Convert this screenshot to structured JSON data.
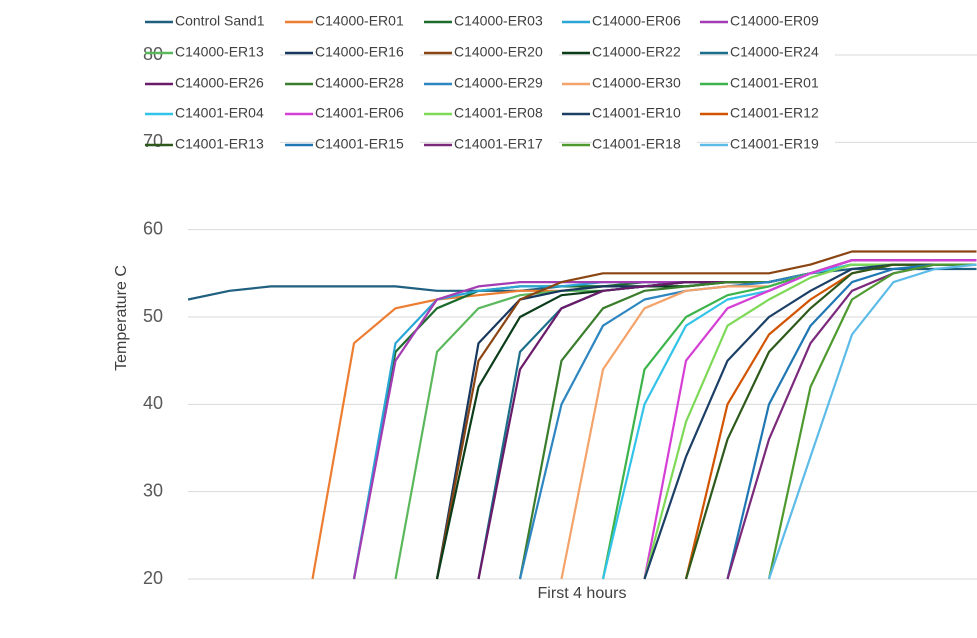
{
  "chart_data": {
    "type": "line",
    "y_label": "Temperature C",
    "x_label": "First 4 hours",
    "categories": [
      null,
      null,
      null,
      null,
      null,
      null,
      null,
      null,
      null,
      null,
      null,
      null,
      null,
      null,
      null,
      null,
      null,
      null,
      null,
      null
    ],
    "ylim": [
      20,
      80
    ],
    "yticks": [
      20,
      30,
      40,
      50,
      60,
      70,
      80
    ],
    "grid": true,
    "series": [
      {
        "name": "Control Sand1",
        "color": "#1f5f7f",
        "values": [
          52,
          53,
          53.5,
          53.5,
          53.5,
          53.5,
          53,
          53,
          53,
          53.5,
          53.5,
          53.5,
          54,
          54,
          54,
          55,
          55.5,
          55.5,
          55.5,
          55.5
        ]
      },
      {
        "name": "C14000-ER01",
        "color": "#ed7d31",
        "values": [
          null,
          null,
          null,
          20,
          47,
          51,
          52,
          52.5,
          53,
          53,
          53.5,
          53.5,
          54,
          54,
          54,
          55,
          56,
          56,
          56,
          56
        ]
      },
      {
        "name": "C14000-ER03",
        "color": "#1e6b2e",
        "values": [
          null,
          null,
          null,
          null,
          20,
          46,
          51,
          53,
          53.5,
          53.5,
          53.5,
          54,
          54,
          54,
          54,
          55,
          56,
          56,
          56,
          56
        ]
      },
      {
        "name": "C14000-ER06",
        "color": "#2aa6d6",
        "values": [
          null,
          null,
          null,
          null,
          20,
          47,
          52,
          53,
          53.5,
          53.5,
          54,
          54,
          54,
          54,
          54,
          55,
          56.5,
          56.5,
          56.5,
          56.5
        ]
      },
      {
        "name": "C14000-ER09",
        "color": "#a33db3",
        "values": [
          null,
          null,
          null,
          null,
          20,
          45,
          52,
          53.5,
          54,
          54,
          54,
          54,
          54,
          54,
          54,
          55,
          56.5,
          56.5,
          56.5,
          56.5
        ]
      },
      {
        "name": "C14000-ER13",
        "color": "#5cb85c",
        "values": [
          null,
          null,
          null,
          null,
          null,
          20,
          46,
          51,
          52.5,
          53,
          53,
          53.5,
          53.5,
          54,
          54,
          55,
          56,
          56,
          56,
          56
        ]
      },
      {
        "name": "C14000-ER16",
        "color": "#17375e",
        "values": [
          null,
          null,
          null,
          null,
          null,
          null,
          20,
          47,
          52,
          53,
          53.5,
          53.5,
          54,
          54,
          54,
          55,
          56,
          56,
          56,
          56
        ]
      },
      {
        "name": "C14000-ER20",
        "color": "#8b4513",
        "values": [
          null,
          null,
          null,
          null,
          null,
          null,
          20,
          45,
          52,
          54,
          55,
          55,
          55,
          55,
          55,
          56,
          57.5,
          57.5,
          57.5,
          57.5
        ]
      },
      {
        "name": "C14000-ER22",
        "color": "#0b3d1a",
        "values": [
          null,
          null,
          null,
          null,
          null,
          null,
          20,
          42,
          50,
          52.5,
          53,
          53.5,
          53.5,
          54,
          54,
          55,
          56,
          56,
          56,
          56
        ]
      },
      {
        "name": "C14000-ER24",
        "color": "#1b6f8a",
        "values": [
          null,
          null,
          null,
          null,
          null,
          null,
          null,
          20,
          46,
          51,
          53,
          53.5,
          54,
          54,
          54,
          55,
          56,
          56,
          56,
          56
        ]
      },
      {
        "name": "C14000-ER26",
        "color": "#6a1b6a",
        "values": [
          null,
          null,
          null,
          null,
          null,
          null,
          null,
          20,
          44,
          51,
          53,
          53.5,
          54,
          54,
          54,
          55,
          56.5,
          56.5,
          56.5,
          56.5
        ]
      },
      {
        "name": "C14000-ER28",
        "color": "#3a7d2c",
        "values": [
          null,
          null,
          null,
          null,
          null,
          null,
          null,
          null,
          20,
          45,
          51,
          53,
          53.5,
          54,
          54,
          55,
          56,
          56,
          56,
          56
        ]
      },
      {
        "name": "C14000-ER29",
        "color": "#2e86c1",
        "values": [
          null,
          null,
          null,
          null,
          null,
          null,
          null,
          null,
          20,
          40,
          49,
          52,
          53,
          53.5,
          54,
          55,
          56,
          56,
          56,
          56
        ]
      },
      {
        "name": "C14000-ER30",
        "color": "#f4a36b",
        "values": [
          null,
          null,
          null,
          null,
          null,
          null,
          null,
          null,
          null,
          20,
          44,
          51,
          53,
          53.5,
          53.5,
          55,
          56,
          56,
          56,
          56
        ]
      },
      {
        "name": "C14001-ER01",
        "color": "#3cb44b",
        "values": [
          null,
          null,
          null,
          null,
          null,
          null,
          null,
          null,
          null,
          null,
          20,
          44,
          50,
          52.5,
          53.5,
          55,
          56,
          56,
          56,
          56
        ]
      },
      {
        "name": "C14001-ER04",
        "color": "#33c3e8",
        "values": [
          null,
          null,
          null,
          null,
          null,
          null,
          null,
          null,
          null,
          null,
          20,
          40,
          49,
          52,
          53,
          55,
          56,
          56,
          56,
          56
        ]
      },
      {
        "name": "C14001-ER06",
        "color": "#d63fd6",
        "values": [
          null,
          null,
          null,
          null,
          null,
          null,
          null,
          null,
          null,
          null,
          null,
          20,
          45,
          51,
          53,
          55,
          56.5,
          56.5,
          56.5,
          56.5
        ]
      },
      {
        "name": "C14001-ER08",
        "color": "#7ed957",
        "values": [
          null,
          null,
          null,
          null,
          null,
          null,
          null,
          null,
          null,
          null,
          null,
          20,
          38,
          49,
          52,
          54.5,
          56,
          56,
          56,
          56
        ]
      },
      {
        "name": "C14001-ER10",
        "color": "#1c3f66",
        "values": [
          null,
          null,
          null,
          null,
          null,
          null,
          null,
          null,
          null,
          null,
          null,
          20,
          34,
          45,
          50,
          53,
          55.5,
          56,
          56,
          56
        ]
      },
      {
        "name": "C14001-ER12",
        "color": "#d35400",
        "values": [
          null,
          null,
          null,
          null,
          null,
          null,
          null,
          null,
          null,
          null,
          null,
          null,
          20,
          40,
          48,
          52,
          55,
          56,
          56,
          56
        ]
      },
      {
        "name": "C14001-ER13",
        "color": "#2d5a1b",
        "values": [
          null,
          null,
          null,
          null,
          null,
          null,
          null,
          null,
          null,
          null,
          null,
          null,
          20,
          36,
          46,
          51,
          55,
          56,
          56,
          56
        ]
      },
      {
        "name": "C14001-ER15",
        "color": "#1f77b4",
        "values": [
          null,
          null,
          null,
          null,
          null,
          null,
          null,
          null,
          null,
          null,
          null,
          null,
          null,
          20,
          40,
          49,
          54,
          55.5,
          56,
          56
        ]
      },
      {
        "name": "C14001-ER17",
        "color": "#7b2a7b",
        "values": [
          null,
          null,
          null,
          null,
          null,
          null,
          null,
          null,
          null,
          null,
          null,
          null,
          null,
          20,
          36,
          47,
          53,
          55,
          56,
          56
        ]
      },
      {
        "name": "C14001-ER18",
        "color": "#4e9a2f",
        "values": [
          null,
          null,
          null,
          null,
          null,
          null,
          null,
          null,
          null,
          null,
          null,
          null,
          null,
          null,
          20,
          42,
          52,
          55,
          56,
          56
        ]
      },
      {
        "name": "C14001-ER19",
        "color": "#5dbbe8",
        "values": [
          null,
          null,
          null,
          null,
          null,
          null,
          null,
          null,
          null,
          null,
          null,
          null,
          null,
          null,
          20,
          34,
          48,
          54,
          55.5,
          56
        ]
      }
    ]
  }
}
